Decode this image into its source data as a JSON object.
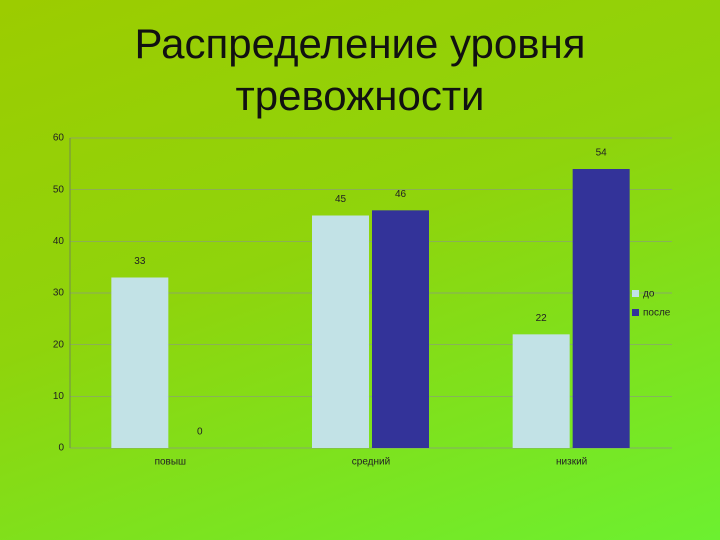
{
  "chart_data": {
    "type": "bar",
    "title": "Распределение уровня тревожности",
    "categories": [
      "повыш",
      "средний",
      "низкий"
    ],
    "series": [
      {
        "name": "до",
        "color": "#c2e2e6",
        "values": [
          33,
          45,
          22
        ]
      },
      {
        "name": "после",
        "color": "#333399",
        "values": [
          0,
          46,
          54
        ]
      }
    ],
    "ylim": [
      0,
      60
    ],
    "yticks": [
      0,
      10,
      20,
      30,
      40,
      50,
      60
    ],
    "grid": true,
    "legend": "right"
  }
}
